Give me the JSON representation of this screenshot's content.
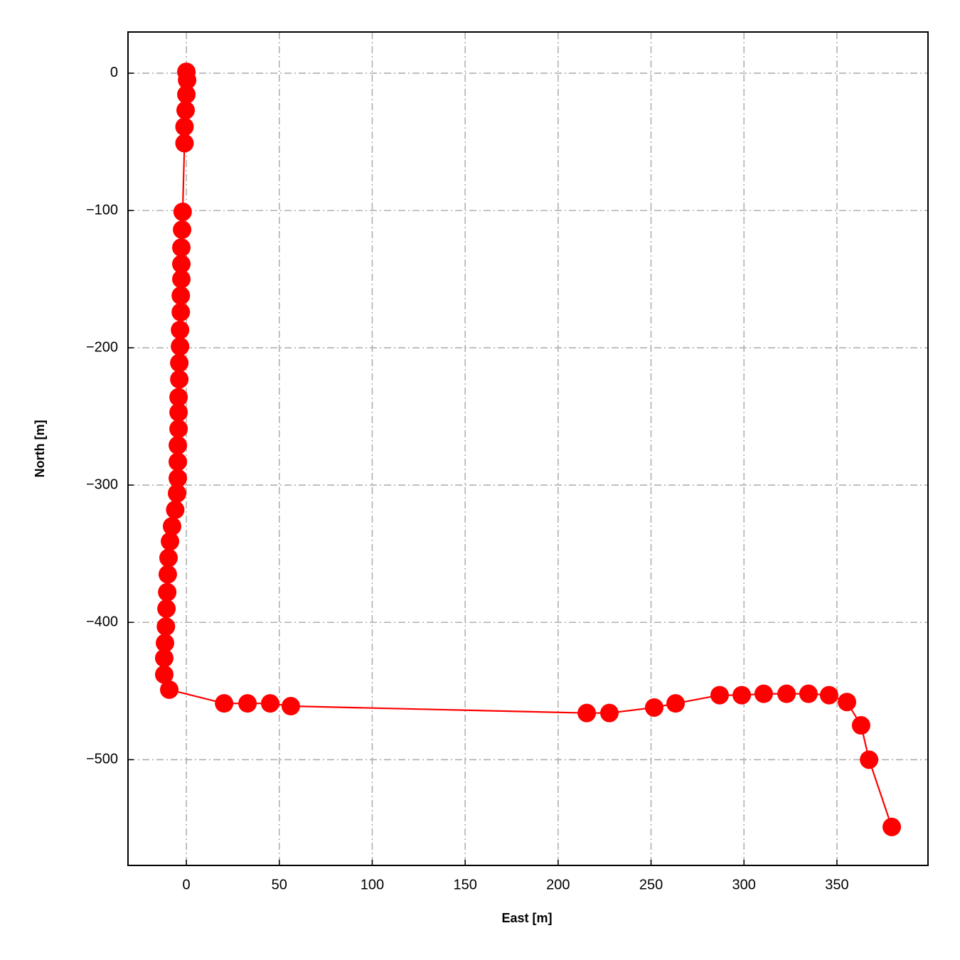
{
  "chart_data": {
    "type": "line",
    "markers": true,
    "color": "#ff0000",
    "xlabel": "East [m]",
    "ylabel": "North [m]",
    "xlim": [
      -31.4,
      399
    ],
    "ylim": [
      -577,
      30
    ],
    "xticks": [
      0,
      50,
      100,
      150,
      200,
      250,
      300,
      350
    ],
    "yticks": [
      0,
      {
        "value": -100,
        "label": "−100"
      },
      {
        "value": -200,
        "label": "−200"
      },
      {
        "value": -300,
        "label": "−300"
      },
      {
        "value": -400,
        "label": "−400"
      },
      {
        "value": -500,
        "label": "−500"
      }
    ],
    "grid": true,
    "x": [
      0,
      0.4,
      0,
      -0.4,
      -1,
      -1,
      -2,
      -2.3,
      -2.7,
      -2.7,
      -2.7,
      -3,
      -3,
      -3.4,
      -3.4,
      -3.8,
      -3.8,
      -4.2,
      -4.2,
      -4.2,
      -4.6,
      -4.6,
      -4.6,
      -5,
      -6,
      -7.7,
      -8.8,
      -9.6,
      -10,
      -10.3,
      -10.7,
      -11,
      -11.5,
      -11.9,
      -11.9,
      -9.2,
      20.3,
      32.9,
      45.1,
      56.2,
      215.4,
      227.6,
      251.7,
      263.2,
      286.9,
      298.8,
      310.6,
      322.9,
      334.7,
      345.8,
      355.4,
      363,
      367.3,
      379.5
    ],
    "values": [
      1,
      -5,
      -15.5,
      -27,
      -39,
      -51,
      -101,
      -114,
      -127,
      -139,
      -150,
      -162,
      -174,
      -187,
      -199,
      -211,
      -223,
      -236,
      -247,
      -259,
      -271,
      -283,
      -295,
      -306,
      -318,
      -330,
      -341,
      -353,
      -365,
      -378,
      -390,
      -403,
      -415,
      -426,
      -438,
      -449,
      -459,
      -459,
      -459,
      -461,
      -466,
      -466,
      -462,
      -459,
      -453,
      -453,
      -452,
      -452,
      -452,
      -453,
      -458,
      -475,
      -500,
      -549
    ]
  }
}
